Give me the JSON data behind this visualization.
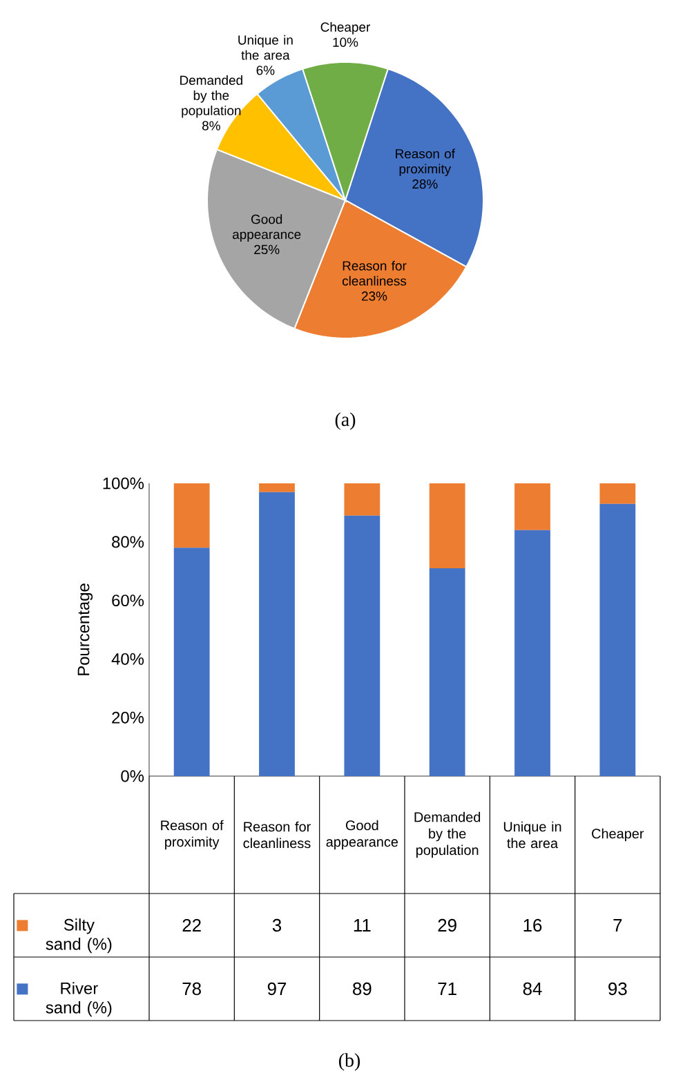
{
  "chart_data": [
    {
      "type": "pie",
      "categories": [
        "Reason of proximity",
        "Reason for cleanliness",
        "Good appearance",
        "Demanded by the population",
        "Unique in the area",
        "Cheaper"
      ],
      "values": [
        28,
        23,
        25,
        8,
        6,
        10
      ],
      "colors": [
        "#4472c4",
        "#ed7d31",
        "#a5a5a5",
        "#ffc000",
        "#5b9bd5",
        "#70ad47"
      ],
      "value_labels": [
        "28%",
        "23%",
        "25%",
        "8%",
        "6%",
        "10%"
      ],
      "annotations": [
        "(a)"
      ]
    },
    {
      "type": "bar",
      "stacked": true,
      "categories": [
        "Reason of proximity",
        "Reason for cleanliness",
        "Good appearance",
        "Demanded by the population",
        "Unique in the area",
        "Cheaper"
      ],
      "series": [
        {
          "name": "River sand (%)",
          "color": "#4472c4",
          "values": [
            78,
            97,
            89,
            71,
            84,
            93
          ]
        },
        {
          "name": "Silty sand (%)",
          "color": "#ed7d31",
          "values": [
            22,
            3,
            11,
            29,
            16,
            7
          ]
        }
      ],
      "ylabel": "Pourcentage",
      "ylim": [
        0,
        100
      ],
      "yticks": [
        {
          "value": 0,
          "label": "0%"
        },
        {
          "value": 20,
          "label": "20%"
        },
        {
          "value": 40,
          "label": "40%"
        },
        {
          "value": 60,
          "label": "60%"
        },
        {
          "value": 80,
          "label": "80%"
        },
        {
          "value": 100,
          "label": "100%"
        }
      ],
      "data_labels": true,
      "legend": "bottom",
      "annotations": [
        "(b)"
      ]
    }
  ]
}
